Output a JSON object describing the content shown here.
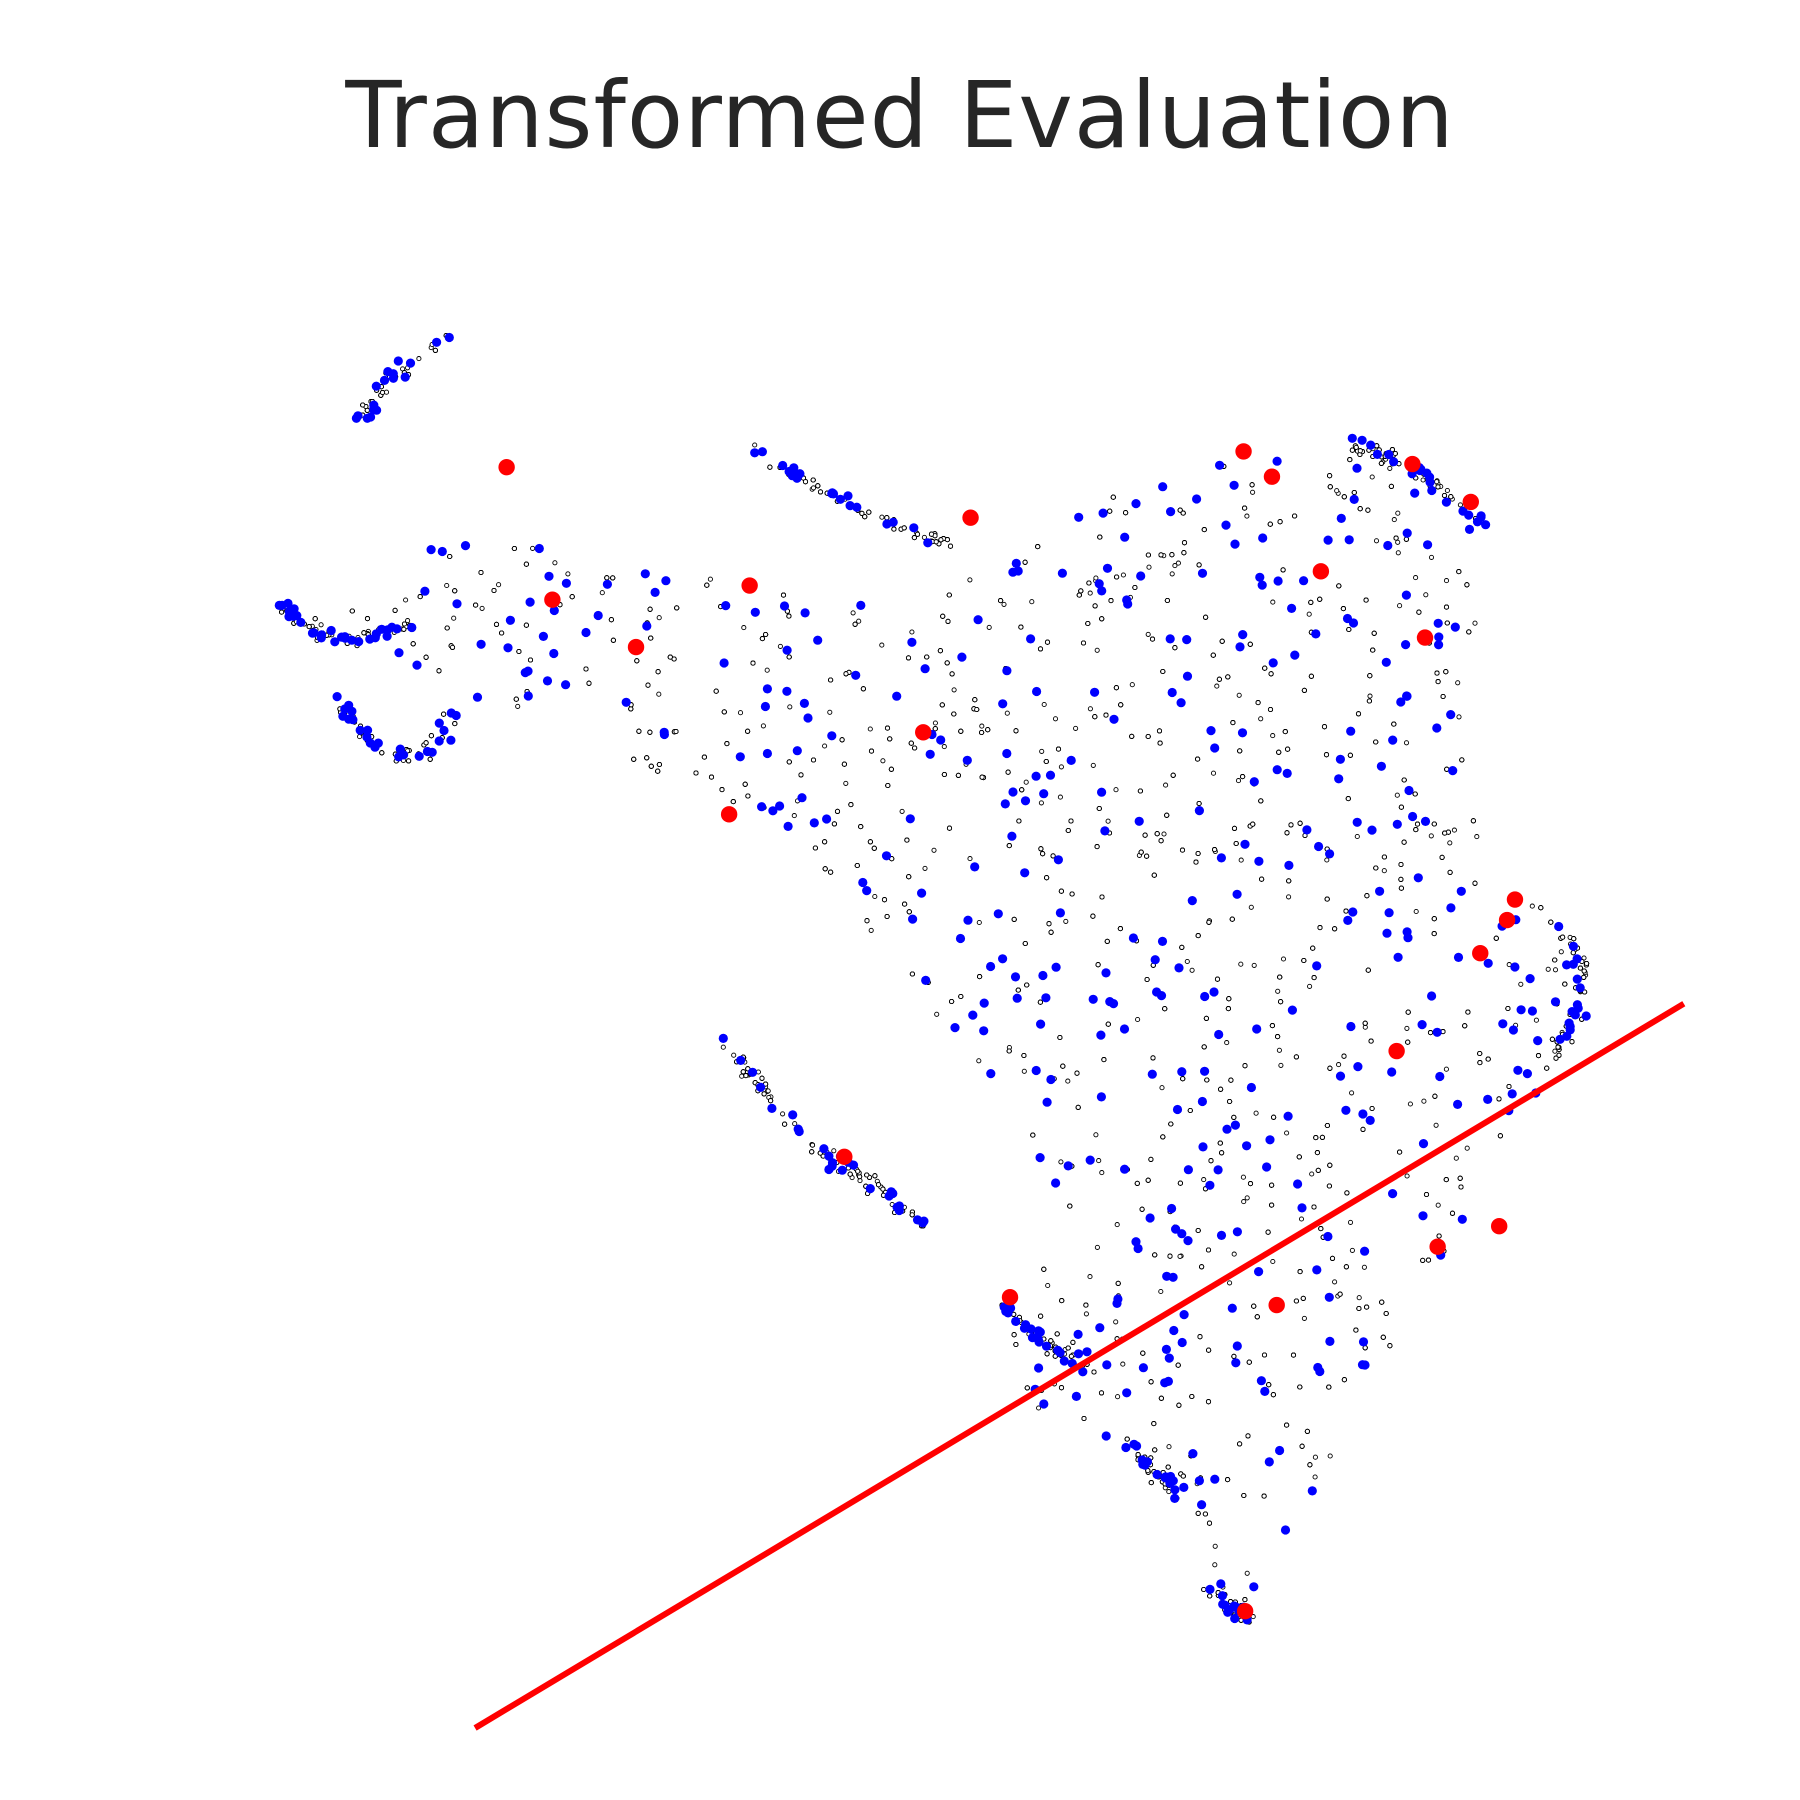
{
  "chart_data": {
    "type": "scatter",
    "title": "Transformed Evaluation",
    "xlabel": "",
    "ylabel": "",
    "axes_visible": false,
    "grid": false,
    "xlim": [
      0,
      100
    ],
    "ylim": [
      0,
      100
    ],
    "background_density": 6500,
    "colors": {
      "background_points": "#000000",
      "selected_points": "#0000ff",
      "highlight_points": "#ff0000",
      "line": "#ff0000"
    },
    "series": [
      {
        "kind": "background",
        "point_style": "hollow-black",
        "regions": [
          {
            "type": "polygon",
            "weight": 0.8,
            "points": [
              [
                8.5,
                71.3
              ],
              [
                14,
                74.4
              ],
              [
                20,
                75.5
              ],
              [
                26,
                75.1
              ],
              [
                32,
                73.9
              ],
              [
                38,
                72.5
              ],
              [
                44,
                71
              ],
              [
                50,
                72
              ],
              [
                56,
                75
              ],
              [
                60,
                77.7
              ],
              [
                65,
                79.8
              ],
              [
                70,
                80.5
              ],
              [
                76,
                81
              ],
              [
                80.5,
                78.5
              ],
              [
                82.4,
                76
              ],
              [
                84,
                71.8
              ],
              [
                84,
                66
              ],
              [
                83.5,
                60.5
              ],
              [
                85.5,
                55.8
              ],
              [
                89.5,
                50.5
              ],
              [
                90.5,
                46.5
              ],
              [
                88.7,
                41.5
              ],
              [
                86.5,
                38
              ],
              [
                85,
                35
              ],
              [
                83,
                30.5
              ],
              [
                80,
                26.5
              ],
              [
                77,
                20
              ],
              [
                73,
                14
              ],
              [
                69.2,
                6.9
              ],
              [
                66,
                12
              ],
              [
                62,
                17
              ],
              [
                57.5,
                20
              ],
              [
                52.2,
                20.9
              ],
              [
                53,
                25
              ],
              [
                56.5,
                29
              ],
              [
                58,
                33
              ],
              [
                55.5,
                37
              ],
              [
                53,
                41
              ],
              [
                50,
                45
              ],
              [
                46.5,
                49.5
              ],
              [
                42,
                55
              ],
              [
                38.5,
                58
              ],
              [
                35,
                59.5
              ],
              [
                31,
                61
              ],
              [
                27.5,
                63
              ],
              [
                23,
                64.5
              ],
              [
                19.5,
                65.5
              ],
              [
                16.5,
                67.5
              ],
              [
                13,
                68.5
              ],
              [
                8.5,
                70.5
              ]
            ]
          },
          {
            "type": "band",
            "weight": 0.06,
            "width": 0.9,
            "points": [
              [
                8.3,
                71
              ],
              [
                10.5,
                69.5
              ],
              [
                13,
                68.8
              ],
              [
                15,
                69.5
              ],
              [
                17,
                70
              ]
            ]
          },
          {
            "type": "band",
            "weight": 0.05,
            "width": 1.0,
            "points": [
              [
                11.5,
                65.5
              ],
              [
                13.5,
                63
              ],
              [
                15.5,
                61.7
              ],
              [
                17,
                61.7
              ],
              [
                18.5,
                62.8
              ],
              [
                19.5,
                64.5
              ]
            ]
          },
          {
            "type": "band",
            "weight": 0.04,
            "width": 1.2,
            "points": [
              [
                13.5,
                83
              ],
              [
                14.5,
                84.5
              ],
              [
                16.5,
                86.5
              ],
              [
                18.5,
                88
              ]
            ]
          },
          {
            "type": "band",
            "weight": 0.05,
            "width": 1.0,
            "points": [
              [
                38.5,
                81
              ],
              [
                41.5,
                79
              ],
              [
                45,
                77.2
              ],
              [
                48.5,
                75.7
              ],
              [
                51,
                74.8
              ]
            ]
          },
          {
            "type": "band",
            "weight": 0.07,
            "width": 1.1,
            "points": [
              [
                36.5,
                43.5
              ],
              [
                38.5,
                41
              ],
              [
                40.5,
                38.5
              ],
              [
                42.5,
                36.5
              ],
              [
                45,
                35
              ],
              [
                47.5,
                33
              ],
              [
                49.5,
                31.5
              ]
            ]
          },
          {
            "type": "band",
            "weight": 0.04,
            "width": 1.0,
            "points": [
              [
                54,
                27
              ],
              [
                55.5,
                25.5
              ],
              [
                57,
                24.3
              ],
              [
                59,
                23
              ]
            ]
          },
          {
            "type": "band",
            "weight": 0.03,
            "width": 1.0,
            "points": [
              [
                62,
                18
              ],
              [
                64,
                16
              ],
              [
                65.5,
                14.5
              ]
            ]
          },
          {
            "type": "band",
            "weight": 0.05,
            "width": 1.2,
            "points": [
              [
                76,
                81.2
              ],
              [
                79,
                80.5
              ],
              [
                82,
                78.5
              ],
              [
                84.5,
                75.8
              ]
            ]
          },
          {
            "type": "band",
            "weight": 0.05,
            "width": 1.2,
            "points": [
              [
                89.5,
                50.5
              ],
              [
                91,
                48
              ],
              [
                90.5,
                45.5
              ],
              [
                89,
                42.5
              ]
            ]
          },
          {
            "type": "band",
            "weight": 0.03,
            "width": 1.0,
            "points": [
              [
                67,
                9
              ],
              [
                68.5,
                7.5
              ],
              [
                69.5,
                7
              ]
            ]
          }
        ]
      },
      {
        "kind": "selected",
        "point_style": "filled-blue",
        "count": 560
      },
      {
        "kind": "highlight",
        "point_style": "filled-red",
        "points": [
          [
            22.6,
            79.9
          ],
          [
            25.5,
            71.5
          ],
          [
            38,
            72.4
          ],
          [
            30.8,
            68.5
          ],
          [
            52,
            76.7
          ],
          [
            69.3,
            80.9
          ],
          [
            71.1,
            79.3
          ],
          [
            80,
            80.1
          ],
          [
            83.7,
            77.7
          ],
          [
            74.2,
            73.3
          ],
          [
            80.8,
            69.1
          ],
          [
            36.7,
            57.9
          ],
          [
            49,
            63.1
          ],
          [
            86.5,
            52.5
          ],
          [
            86,
            51.2
          ],
          [
            84.3,
            49.1
          ],
          [
            79,
            42.9
          ],
          [
            85.5,
            31.8
          ],
          [
            81.6,
            30.5
          ],
          [
            44,
            36.2
          ],
          [
            54.5,
            27.3
          ],
          [
            71.4,
            26.8
          ],
          [
            69.4,
            7.4
          ]
        ]
      }
    ],
    "line": {
      "x": [
        20.6,
        97.2
      ],
      "y": [
        0,
        45.9
      ]
    }
  }
}
